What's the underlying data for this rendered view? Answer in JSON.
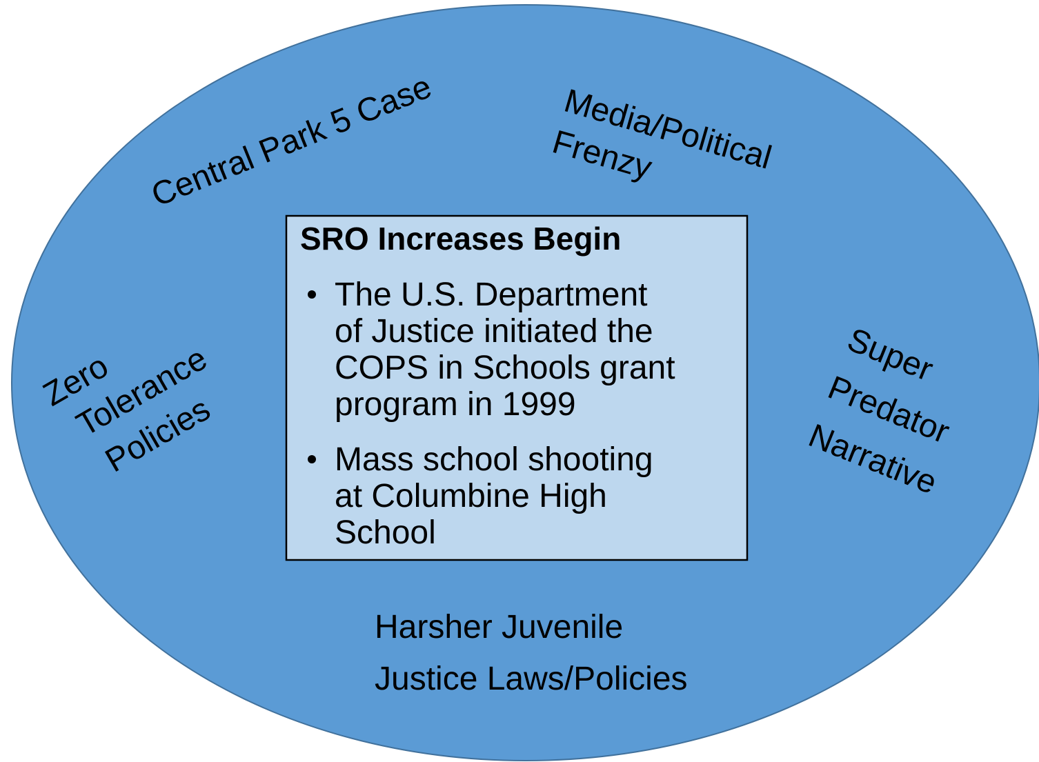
{
  "center_box": {
    "title": "SRO Increases Begin",
    "bullets": [
      {
        "lines": [
          "The U.S. Department",
          "of Justice initiated the",
          "COPS in Schools  grant",
          "program in 1999"
        ]
      },
      {
        "lines": [
          "Mass school shooting",
          "at Columbine High",
          "School"
        ]
      }
    ]
  },
  "factors": [
    {
      "lines": [
        "Central Park 5 Case"
      ]
    },
    {
      "lines": [
        "Media/Political",
        "Frenzy"
      ]
    },
    {
      "lines": [
        "Zero",
        "Tolerance",
        "Policies"
      ]
    },
    {
      "lines": [
        "Super",
        "Predator",
        "Narrative"
      ]
    },
    {
      "lines": [
        "Harsher Juvenile",
        "Justice Laws/Policies"
      ]
    }
  ]
}
